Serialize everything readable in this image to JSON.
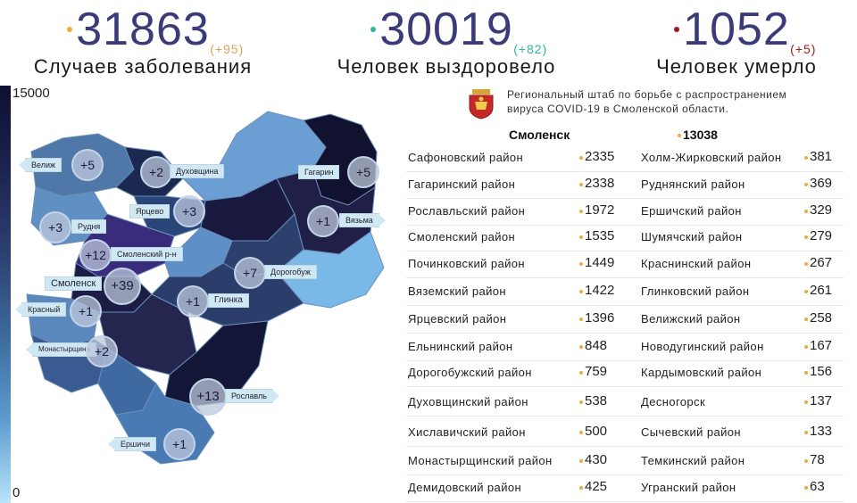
{
  "stats": {
    "cases": {
      "value": "31863",
      "delta": "(+95)",
      "label": "Случаев заболевания",
      "color": "#f2a93b"
    },
    "recovered": {
      "value": "30019",
      "delta": "(+82)",
      "label": "Человек выздоровело",
      "color": "#2ab7a0"
    },
    "deaths": {
      "value": "1052",
      "delta": "(+5)",
      "label": "Человек умерло",
      "color": "#9b1b1b"
    }
  },
  "scale": {
    "max": "15000",
    "min": "0"
  },
  "map": {
    "callouts": [
      {
        "name": "Велиж",
        "delta": "+5"
      },
      {
        "name": "Духовщина",
        "delta": "+2"
      },
      {
        "name": "Гагарин",
        "delta": "+5"
      },
      {
        "name": "Ярцево",
        "delta": "+3"
      },
      {
        "name": "Вязьма",
        "delta": "+1"
      },
      {
        "name": "Рудня",
        "delta": "+3"
      },
      {
        "name": "Смоленский р-н",
        "delta": "+12"
      },
      {
        "name": "Дорогобуж",
        "delta": "+7"
      },
      {
        "name": "Смоленск",
        "delta": "+39"
      },
      {
        "name": "Глинка",
        "delta": "+1"
      },
      {
        "name": "Красный",
        "delta": "+1"
      },
      {
        "name": "Монастырщина",
        "delta": "+2"
      },
      {
        "name": "Рославль",
        "delta": "+13"
      },
      {
        "name": "Ершичи",
        "delta": "+1"
      }
    ]
  },
  "header": {
    "line1": "Региональный штаб по борьбе с распространением",
    "line2": "вируса COVID-19 в Смоленской области."
  },
  "city": {
    "name": "Смоленск",
    "value": "13038"
  },
  "districts_left": [
    {
      "name": "Сафоновский район",
      "value": "2335"
    },
    {
      "name": "Гагаринский район",
      "value": "2338"
    },
    {
      "name": "Рославльский район",
      "value": "1972"
    },
    {
      "name": "Смоленский район",
      "value": "1535"
    },
    {
      "name": "Починковский район",
      "value": "1449"
    },
    {
      "name": "Вяземский район",
      "value": "1422"
    },
    {
      "name": "Ярцевский район",
      "value": "1396"
    },
    {
      "name": "Ельнинский район",
      "value": "848"
    },
    {
      "name": "Дорогобужский район",
      "value": "759"
    },
    {
      "name": "Духовщинский район",
      "value": "538"
    },
    {
      "name": "Хиславичский район",
      "value": "500"
    },
    {
      "name": "Монастырщинский район",
      "value": "430"
    },
    {
      "name": "Демидовский район",
      "value": "425"
    }
  ],
  "districts_right": [
    {
      "name": "Холм-Жирковский район",
      "value": "381"
    },
    {
      "name": "Руднянский район",
      "value": "369"
    },
    {
      "name": "Ершичский район",
      "value": "329"
    },
    {
      "name": "Шумячский район",
      "value": "279"
    },
    {
      "name": "Краснинский район",
      "value": "267"
    },
    {
      "name": "Глинковский район",
      "value": "261"
    },
    {
      "name": "Велижский район",
      "value": "258"
    },
    {
      "name": "Новодугинский район",
      "value": "167"
    },
    {
      "name": "Кардымовский район",
      "value": "156"
    },
    {
      "name": "Десногорск",
      "value": "137"
    },
    {
      "name": "Сычевский район",
      "value": "133"
    },
    {
      "name": "Темкинский район",
      "value": "78"
    },
    {
      "name": "Угранский район",
      "value": "63"
    }
  ]
}
